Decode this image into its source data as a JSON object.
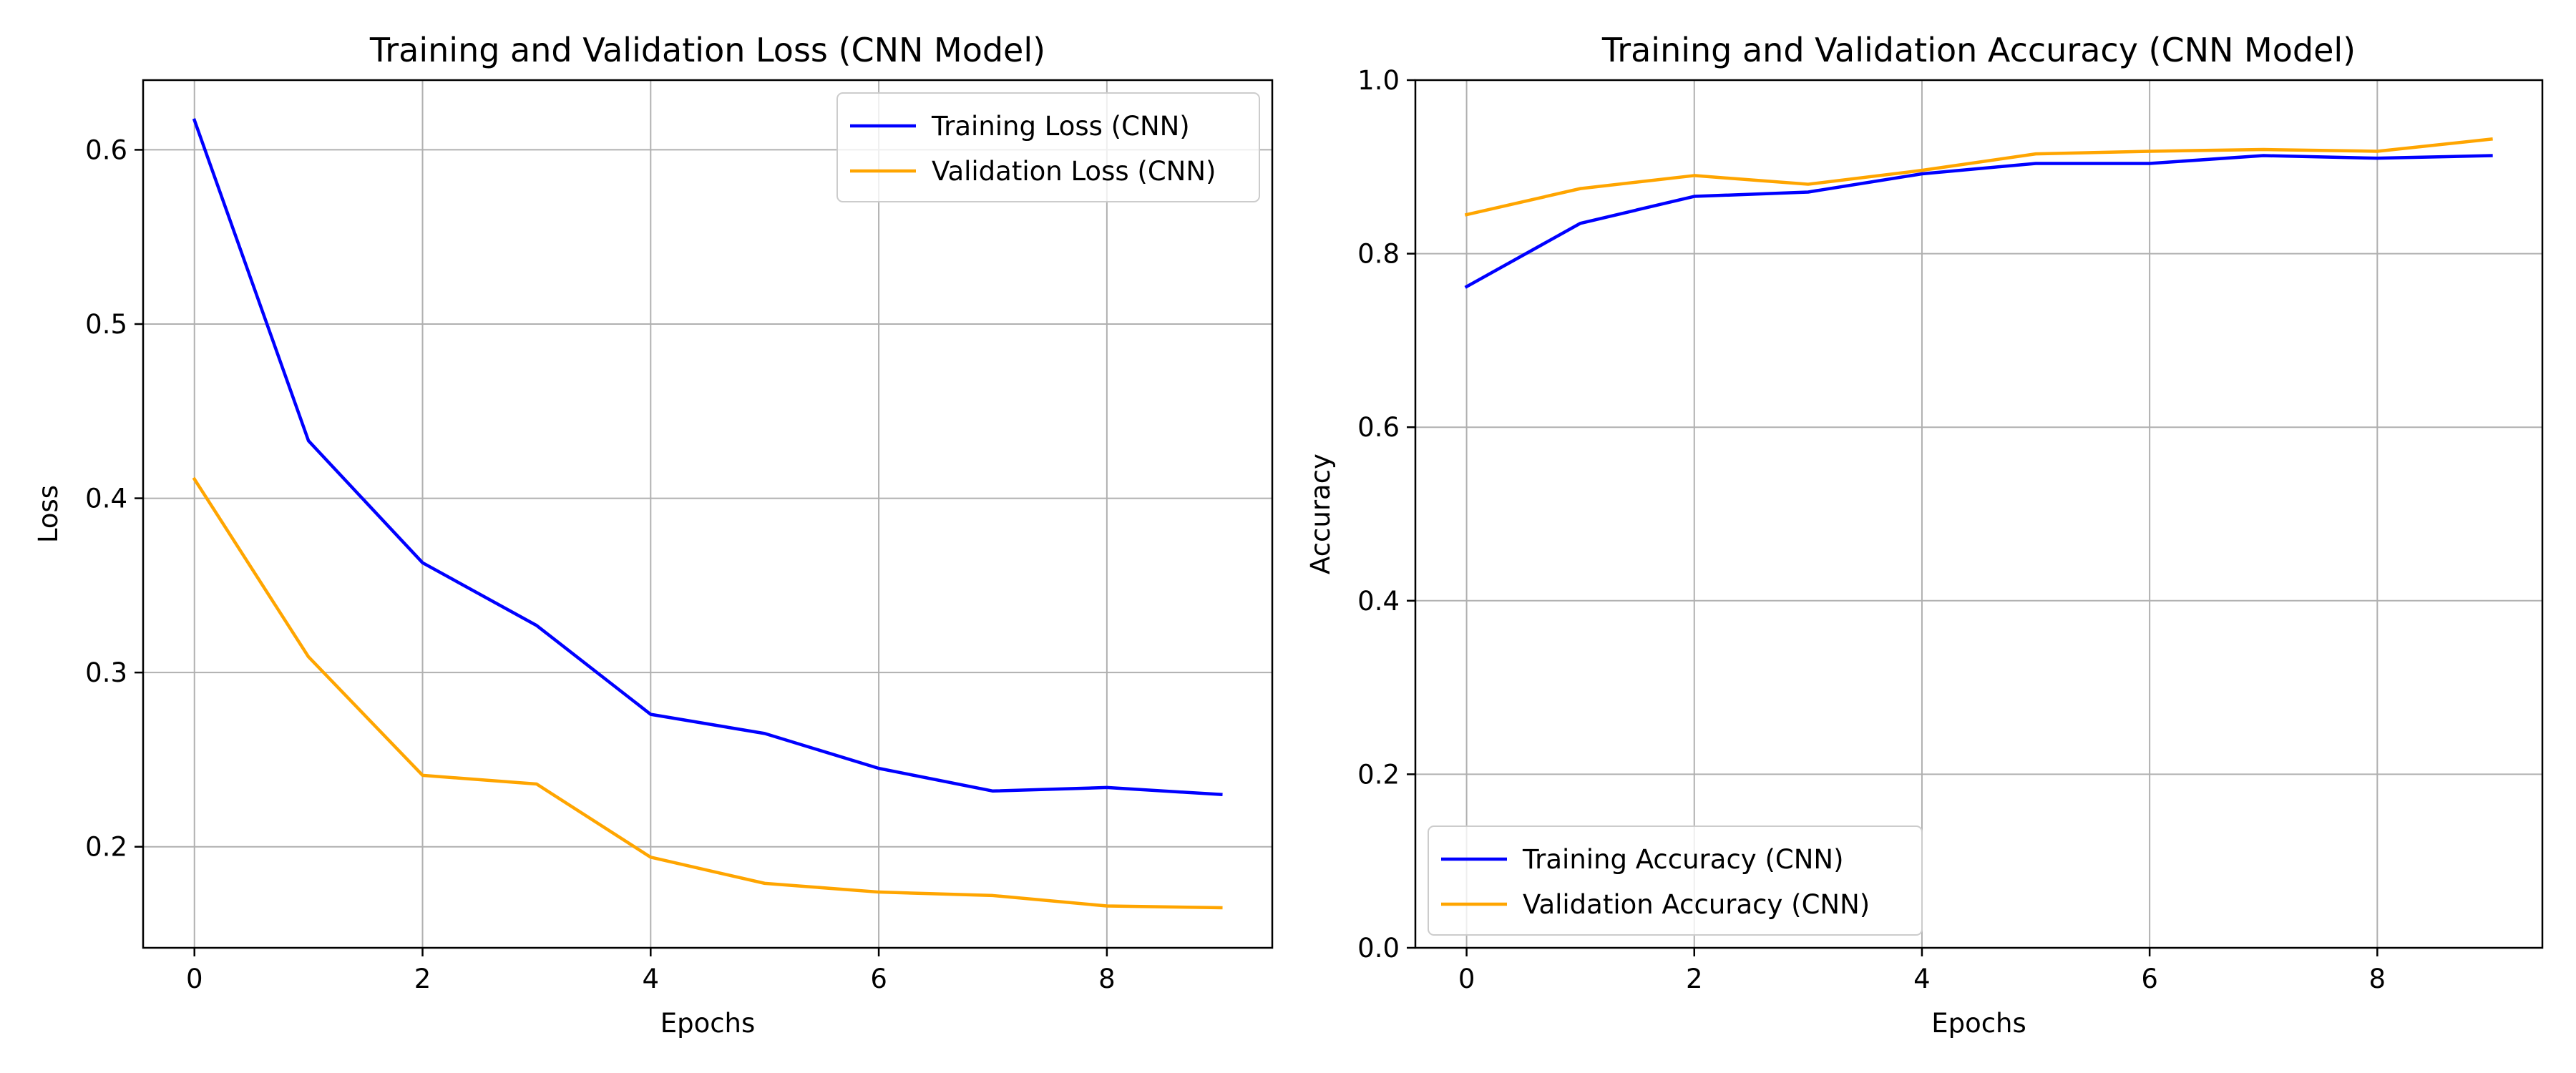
{
  "chart_data": [
    {
      "type": "line",
      "title": "Training and Validation Loss (CNN Model)",
      "xlabel": "Epochs",
      "ylabel": "Loss",
      "x": [
        0,
        1,
        2,
        3,
        4,
        5,
        6,
        7,
        8,
        9
      ],
      "xlim": [
        -0.45,
        9.45
      ],
      "ylim": [
        0.142,
        0.64
      ],
      "xticks": [
        0,
        2,
        4,
        6,
        8
      ],
      "yticks": [
        0.2,
        0.3,
        0.4,
        0.5,
        0.6
      ],
      "grid": true,
      "legend_position": "upper right",
      "series": [
        {
          "name": "Training Loss (CNN)",
          "color": "#0000ff",
          "values": [
            0.617,
            0.433,
            0.363,
            0.327,
            0.276,
            0.265,
            0.245,
            0.232,
            0.234,
            0.23
          ]
        },
        {
          "name": "Validation Loss (CNN)",
          "color": "#ffa500",
          "values": [
            0.411,
            0.309,
            0.241,
            0.236,
            0.194,
            0.179,
            0.174,
            0.172,
            0.166,
            0.165
          ]
        }
      ]
    },
    {
      "type": "line",
      "title": "Training and Validation Accuracy (CNN Model)",
      "xlabel": "Epochs",
      "ylabel": "Accuracy",
      "x": [
        0,
        1,
        2,
        3,
        4,
        5,
        6,
        7,
        8,
        9
      ],
      "xlim": [
        -0.45,
        9.45
      ],
      "ylim": [
        0,
        1
      ],
      "xticks": [
        0,
        2,
        4,
        6,
        8
      ],
      "yticks": [
        0.0,
        0.2,
        0.4,
        0.6,
        0.8,
        1.0
      ],
      "grid": true,
      "legend_position": "lower left",
      "series": [
        {
          "name": "Training Accuracy (CNN)",
          "color": "#0000ff",
          "values": [
            0.762,
            0.835,
            0.866,
            0.871,
            0.892,
            0.904,
            0.904,
            0.913,
            0.91,
            0.913
          ]
        },
        {
          "name": "Validation Accuracy (CNN)",
          "color": "#ffa500",
          "values": [
            0.845,
            0.875,
            0.89,
            0.88,
            0.896,
            0.915,
            0.918,
            0.92,
            0.918,
            0.932
          ]
        }
      ]
    }
  ]
}
